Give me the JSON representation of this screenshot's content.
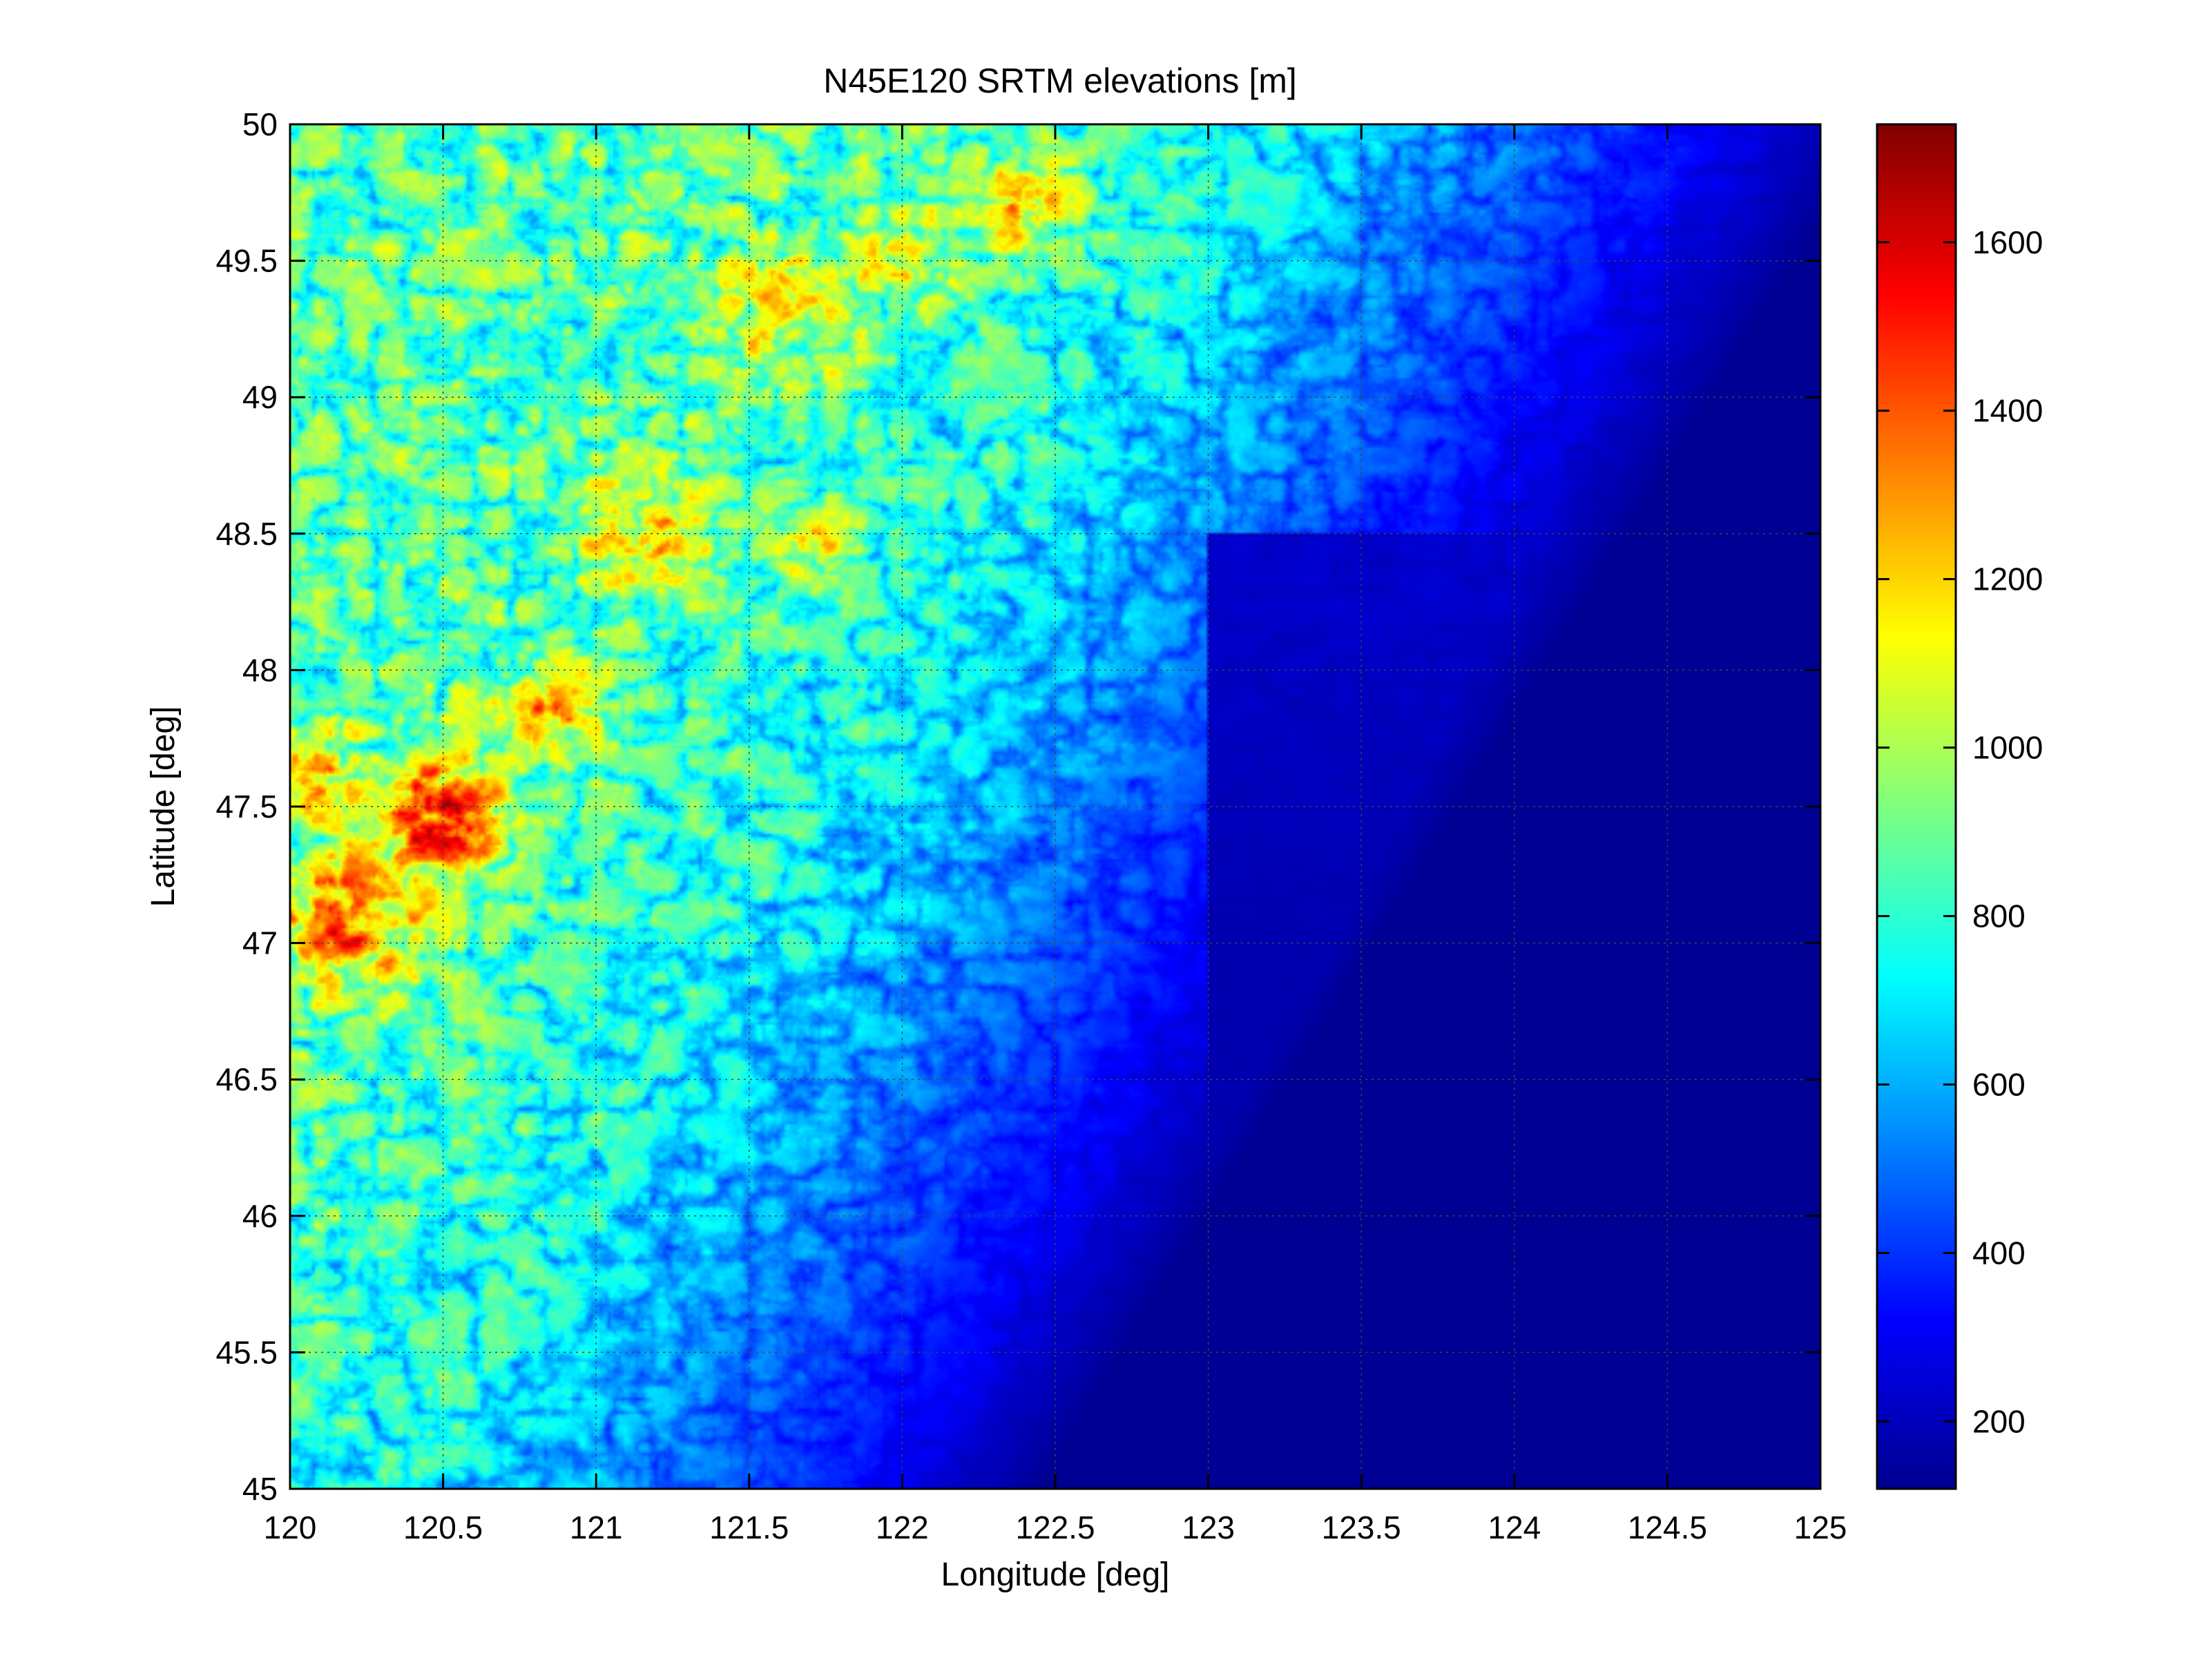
{
  "chart_data": {
    "type": "heatmap",
    "title": "N45E120 SRTM elevations [m]",
    "xlabel": "Longitude [deg]",
    "ylabel": "Latitude [deg]",
    "xlim": [
      120,
      125
    ],
    "ylim": [
      45,
      50
    ],
    "xticks": [
      120,
      120.5,
      121,
      121.5,
      122,
      122.5,
      123,
      123.5,
      124,
      124.5,
      125
    ],
    "yticks": [
      45,
      45.5,
      46,
      46.5,
      47,
      47.5,
      48,
      48.5,
      49,
      49.5,
      50
    ],
    "xtick_labels": [
      "120",
      "120.5",
      "121",
      "121.5",
      "122",
      "122.5",
      "123",
      "123.5",
      "124",
      "124.5",
      "125"
    ],
    "ytick_labels": [
      "45",
      "45.5",
      "46",
      "46.5",
      "47",
      "47.5",
      "48",
      "48.5",
      "49",
      "49.5",
      "50"
    ],
    "grid": true,
    "colormap": "jet",
    "colorbar": {
      "range": [
        120,
        1740
      ],
      "ticks": [
        200,
        400,
        600,
        800,
        1000,
        1200,
        1400,
        1600
      ],
      "tick_labels": [
        "200",
        "400",
        "600",
        "800",
        "1000",
        "1200",
        "1400",
        "1600"
      ],
      "location": "right"
    },
    "elevation_features": [
      {
        "lon": 120.48,
        "lat": 47.45,
        "elevation": 1620,
        "spread": 0.22
      },
      {
        "lon": 120.2,
        "lat": 47.1,
        "elevation": 1450,
        "spread": 0.25
      },
      {
        "lon": 120.05,
        "lat": 47.6,
        "elevation": 1400,
        "spread": 0.18
      },
      {
        "lon": 120.85,
        "lat": 47.85,
        "elevation": 1350,
        "spread": 0.18
      },
      {
        "lon": 121.15,
        "lat": 48.5,
        "elevation": 1300,
        "spread": 0.2
      },
      {
        "lon": 121.7,
        "lat": 48.45,
        "elevation": 1250,
        "spread": 0.15
      },
      {
        "lon": 122.4,
        "lat": 49.7,
        "elevation": 1300,
        "spread": 0.2
      },
      {
        "lon": 122.0,
        "lat": 49.5,
        "elevation": 1200,
        "spread": 0.2
      },
      {
        "lon": 121.6,
        "lat": 49.3,
        "elevation": 1150,
        "spread": 0.3
      }
    ]
  }
}
